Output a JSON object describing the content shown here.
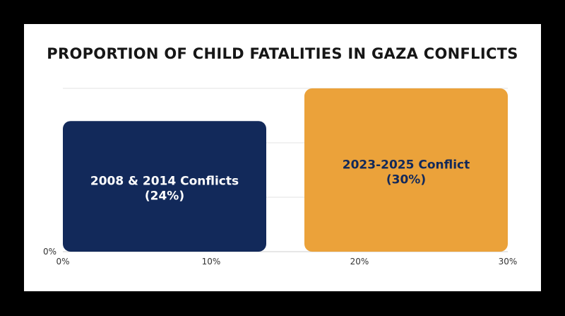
{
  "chart_data": {
    "type": "bar",
    "orientation": "horizontal-extent",
    "title": "PROPORTION OF CHILD FATALITIES IN GAZA CONFLICTS",
    "categories": [
      "2008 & 2014 Conflicts",
      "2023-2025 Conflict"
    ],
    "values": [
      24,
      30
    ],
    "value_labels": [
      "(24%)",
      "(30%)"
    ],
    "colors": [
      "#12295a",
      "#eba23a"
    ],
    "label_colors": [
      "#ffffff",
      "#12295a"
    ],
    "x_ticks": [
      "0%",
      "10%",
      "20%",
      "30%"
    ],
    "y_ticks": [
      "0%"
    ],
    "grid": true
  }
}
